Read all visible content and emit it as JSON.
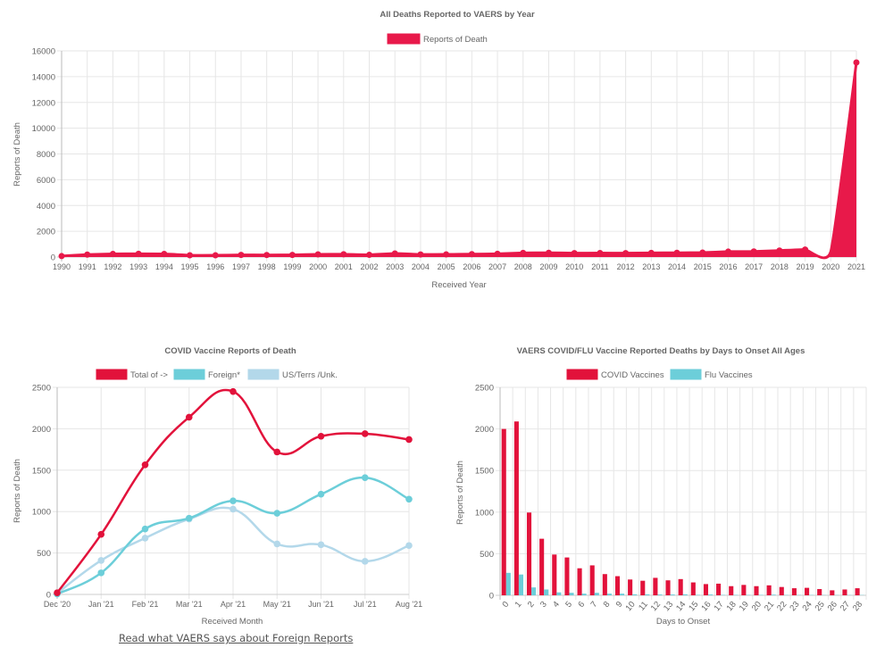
{
  "footer": {
    "foreign_reports_link": "Read what VAERS says about Foreign Reports"
  },
  "chart_data": [
    {
      "type": "area",
      "title": "All Deaths Reported to VAERS by Year",
      "xlabel": "Received Year",
      "ylabel": "Reports of Death",
      "ylim": [
        0,
        16000
      ],
      "yticks": [
        0,
        2000,
        4000,
        6000,
        8000,
        10000,
        12000,
        14000,
        16000
      ],
      "grid": true,
      "legend_position": "top",
      "categories": [
        "1990",
        "1991",
        "1992",
        "1993",
        "1994",
        "1995",
        "1996",
        "1997",
        "1998",
        "1999",
        "2000",
        "2001",
        "2002",
        "2003",
        "2004",
        "2005",
        "2006",
        "2007",
        "2008",
        "2009",
        "2010",
        "2011",
        "2012",
        "2013",
        "2014",
        "2015",
        "2016",
        "2017",
        "2018",
        "2019",
        "2020",
        "2021"
      ],
      "series": [
        {
          "name": "Reports of Death",
          "color": "#e8194a",
          "values": [
            75,
            190,
            245,
            250,
            240,
            140,
            135,
            165,
            160,
            165,
            210,
            215,
            175,
            280,
            200,
            205,
            225,
            250,
            320,
            330,
            305,
            310,
            305,
            320,
            330,
            345,
            420,
            435,
            505,
            580,
            420,
            15100
          ]
        }
      ]
    },
    {
      "type": "line",
      "title": "COVID Vaccine Reports of Death",
      "xlabel": "Received Month",
      "ylabel": "Reports of Death",
      "ylim": [
        0,
        2500
      ],
      "yticks": [
        0,
        500,
        1000,
        1500,
        2000,
        2500
      ],
      "grid": true,
      "legend_position": "top",
      "categories": [
        "Dec '20",
        "Jan '21",
        "Feb '21",
        "Mar '21",
        "Apr '21",
        "May '21",
        "Jun '21",
        "Jul '21",
        "Aug '21"
      ],
      "series": [
        {
          "name": "Total of ->",
          "color": "#e2123b",
          "values": [
            20,
            725,
            1565,
            2140,
            2450,
            1720,
            1910,
            1940,
            1870
          ]
        },
        {
          "name": "Foreign*",
          "color": "#6cced9",
          "values": [
            5,
            260,
            790,
            920,
            1130,
            980,
            1210,
            1410,
            1150
          ]
        },
        {
          "name": "US/Terrs /Unk.",
          "color": "#b3d8ea",
          "values": [
            15,
            410,
            680,
            910,
            1030,
            610,
            600,
            400,
            590
          ]
        }
      ]
    },
    {
      "type": "bar",
      "title": "VAERS COVID/FLU Vaccine Reported Deaths by Days to Onset All Ages",
      "xlabel": "Days to Onset",
      "ylabel": "Reports of Death",
      "ylim": [
        0,
        2500
      ],
      "yticks": [
        0,
        500,
        1000,
        1500,
        2000,
        2500
      ],
      "grid": true,
      "legend_position": "top",
      "categories": [
        "0",
        "1",
        "2",
        "3",
        "4",
        "5",
        "6",
        "7",
        "8",
        "9",
        "10",
        "11",
        "12",
        "13",
        "14",
        "15",
        "16",
        "17",
        "18",
        "19",
        "20",
        "21",
        "22",
        "23",
        "24",
        "25",
        "26",
        "27",
        "28"
      ],
      "series": [
        {
          "name": "COVID Vaccines",
          "color": "#e2123b",
          "values": [
            2000,
            2090,
            995,
            680,
            490,
            455,
            325,
            360,
            255,
            230,
            190,
            175,
            210,
            180,
            195,
            155,
            135,
            140,
            110,
            125,
            110,
            120,
            100,
            85,
            90,
            75,
            60,
            70,
            85
          ]
        },
        {
          "name": "Flu Vaccines",
          "color": "#6cced9",
          "values": [
            270,
            250,
            95,
            70,
            35,
            30,
            20,
            30,
            20,
            20,
            12,
            12,
            10,
            10,
            12,
            6,
            10,
            5,
            5,
            5,
            5,
            8,
            4,
            4,
            4,
            3,
            3,
            3,
            3
          ]
        }
      ]
    }
  ]
}
